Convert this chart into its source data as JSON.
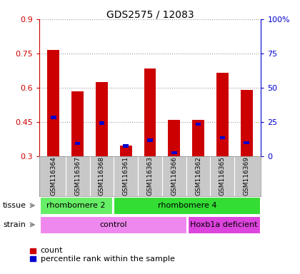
{
  "title": "GDS2575 / 12083",
  "samples": [
    "GSM116364",
    "GSM116367",
    "GSM116368",
    "GSM116361",
    "GSM116363",
    "GSM116366",
    "GSM116362",
    "GSM116365",
    "GSM116369"
  ],
  "red_values": [
    0.765,
    0.585,
    0.625,
    0.345,
    0.685,
    0.46,
    0.46,
    0.665,
    0.59
  ],
  "blue_values": [
    0.47,
    0.355,
    0.445,
    0.345,
    0.37,
    0.315,
    0.44,
    0.38,
    0.36
  ],
  "bar_bottom": 0.3,
  "ylim": [
    0.3,
    0.9
  ],
  "yticks": [
    0.3,
    0.45,
    0.6,
    0.75,
    0.9
  ],
  "ytick_labels": [
    "0.3",
    "0.45",
    "0.6",
    "0.75",
    "0.9"
  ],
  "right_yticks": [
    0,
    25,
    50,
    75,
    100
  ],
  "right_ytick_labels": [
    "0",
    "25",
    "50",
    "75",
    "100%"
  ],
  "red_color": "#cc0000",
  "blue_color": "#0000cc",
  "tissue_groups": [
    {
      "label": "rhombomere 2",
      "start": 0,
      "end": 3,
      "color": "#66ee66"
    },
    {
      "label": "rhombomere 4",
      "start": 3,
      "end": 9,
      "color": "#33dd33"
    }
  ],
  "strain_groups": [
    {
      "label": "control",
      "start": 0,
      "end": 6,
      "color": "#ee88ee"
    },
    {
      "label": "Hoxb1a deficient",
      "start": 6,
      "end": 9,
      "color": "#dd44dd"
    }
  ],
  "legend_count": "count",
  "legend_percentile": "percentile rank within the sample",
  "tissue_label": "tissue",
  "strain_label": "strain"
}
